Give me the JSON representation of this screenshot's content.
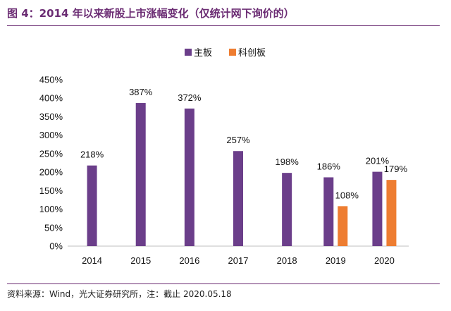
{
  "title": "图 4：2014 年以来新股上市涨幅变化（仅统计网下询价的）",
  "source": "资料来源：Wind，光大证券研究所，注：截止 2020.05.18",
  "colors": {
    "main_board": "#6b3e8a",
    "star_market": "#ee7d31",
    "title": "#6b2c73"
  },
  "chart_data": {
    "type": "bar",
    "categories": [
      "2014",
      "2015",
      "2016",
      "2017",
      "2018",
      "2019",
      "2020"
    ],
    "series": [
      {
        "name": "主板",
        "values": [
          218,
          387,
          372,
          257,
          198,
          186,
          201
        ],
        "labels": [
          "218%",
          "387%",
          "372%",
          "257%",
          "198%",
          "186%",
          "201%"
        ]
      },
      {
        "name": "科创板",
        "values": [
          null,
          null,
          null,
          null,
          null,
          108,
          179
        ],
        "labels": [
          "",
          "",
          "",
          "",
          "",
          "108%",
          "179%"
        ]
      }
    ],
    "ylim": [
      0,
      450
    ],
    "yticks": [
      "0%",
      "50%",
      "100%",
      "150%",
      "200%",
      "250%",
      "300%",
      "350%",
      "400%",
      "450%"
    ],
    "legend_position": "top-center",
    "grid": false
  }
}
